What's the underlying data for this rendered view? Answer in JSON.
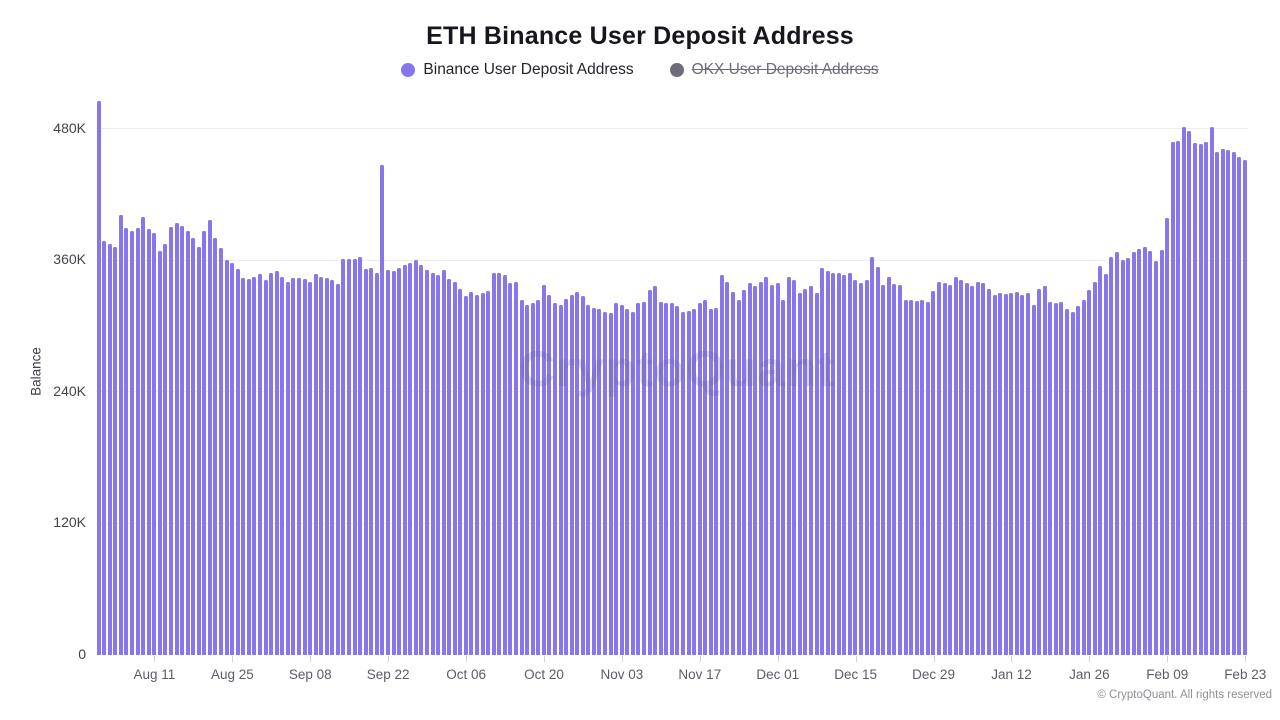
{
  "title": "ETH Binance User Deposit Address",
  "legend": {
    "binance": {
      "label": "Binance User Deposit Address",
      "color": "#8678EC",
      "status": "active"
    },
    "okx": {
      "label": "OKX User Deposit Address",
      "color": "#6F6B7A",
      "status": "disabled"
    }
  },
  "watermark": "CryptoQuant",
  "footer": "© CryptoQuant. All rights reserved",
  "colors": {
    "bar": "#8678EC",
    "okx_gray": "#6F6B7A",
    "grid": "#EDEDF2",
    "y_axis_text": "#43434D",
    "x_axis_text": "#5C5C68",
    "title_text": "#16161F",
    "footer_gray": "#8F8F99"
  },
  "chart_data": {
    "type": "bar",
    "title": "ETH Binance User Deposit Address",
    "ylabel": "Balance",
    "xlabel": "",
    "series_name": "Binance User Deposit Address",
    "disabled_series_name": "OKX User Deposit Address",
    "frequency": "daily",
    "start_date": "Aug 01",
    "end_date": "Feb 23",
    "values_unit": "thousands",
    "ylim_k": [
      0,
      505
    ],
    "grid": "horizontal",
    "legend_position": "top-center",
    "y_ticks": [
      {
        "label": "0",
        "value_k": 0
      },
      {
        "label": "120K",
        "value_k": 120
      },
      {
        "label": "240K",
        "value_k": 240
      },
      {
        "label": "360K",
        "value_k": 360
      },
      {
        "label": "480K",
        "value_k": 480
      }
    ],
    "x_ticks": [
      {
        "label": "Aug 11",
        "index": 10
      },
      {
        "label": "Aug 25",
        "index": 24
      },
      {
        "label": "Sep 08",
        "index": 38
      },
      {
        "label": "Sep 22",
        "index": 52
      },
      {
        "label": "Oct 06",
        "index": 66
      },
      {
        "label": "Oct 20",
        "index": 80
      },
      {
        "label": "Nov 03",
        "index": 94
      },
      {
        "label": "Nov 17",
        "index": 108
      },
      {
        "label": "Dec 01",
        "index": 122
      },
      {
        "label": "Dec 15",
        "index": 136
      },
      {
        "label": "Dec 29",
        "index": 150
      },
      {
        "label": "Jan 12",
        "index": 164
      },
      {
        "label": "Jan 26",
        "index": 178
      },
      {
        "label": "Feb 09",
        "index": 192
      },
      {
        "label": "Feb 23",
        "index": 206
      }
    ],
    "values_k": [
      505,
      377,
      375,
      372,
      401,
      389,
      387,
      389,
      399,
      388,
      385,
      368,
      375,
      390,
      394,
      391,
      387,
      380,
      372,
      387,
      397,
      380,
      371,
      360,
      357,
      352,
      344,
      343,
      345,
      347,
      342,
      348,
      350,
      345,
      340,
      344,
      344,
      343,
      340,
      347,
      345,
      344,
      342,
      338,
      361,
      361,
      361,
      363,
      352,
      353,
      348,
      447,
      351,
      350,
      353,
      356,
      357,
      360,
      356,
      351,
      348,
      346,
      351,
      343,
      340,
      334,
      327,
      331,
      328,
      330,
      332,
      348,
      348,
      346,
      339,
      340,
      324,
      319,
      321,
      324,
      337,
      328,
      321,
      319,
      325,
      328,
      331,
      327,
      319,
      316,
      315,
      313,
      312,
      321,
      319,
      315,
      313,
      321,
      322,
      333,
      336,
      322,
      321,
      321,
      318,
      313,
      314,
      315,
      321,
      324,
      315,
      316,
      346,
      340,
      331,
      324,
      333,
      339,
      336,
      340,
      345,
      337,
      339,
      324,
      345,
      342,
      330,
      334,
      336,
      330,
      353,
      350,
      348,
      348,
      346,
      348,
      342,
      339,
      342,
      363,
      354,
      337,
      345,
      338,
      337,
      324,
      324,
      323,
      324,
      322,
      332,
      340,
      339,
      337,
      345,
      342,
      339,
      336,
      340,
      339,
      334,
      328,
      330,
      329,
      330,
      331,
      328,
      330,
      319,
      334,
      336,
      322,
      321,
      322,
      315,
      313,
      318,
      324,
      333,
      340,
      355,
      347,
      363,
      367,
      360,
      362,
      367,
      370,
      372,
      368,
      359,
      369,
      398,
      468,
      469,
      481,
      478,
      467,
      466,
      468,
      481,
      459,
      461,
      460,
      459,
      454,
      451
    ]
  }
}
